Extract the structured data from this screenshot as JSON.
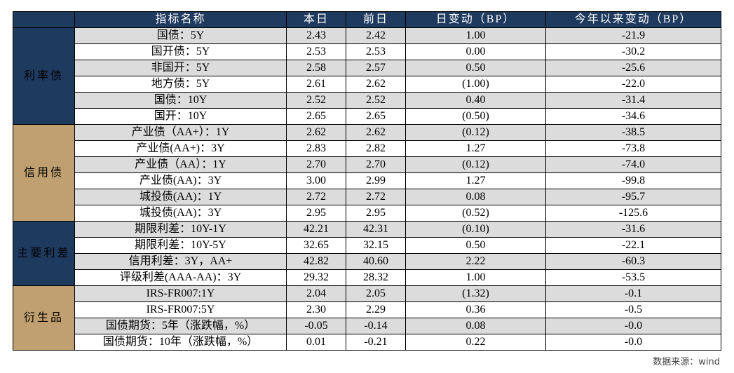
{
  "headers": [
    "指标名称",
    "本日",
    "前日",
    "日变动（BP）",
    "今年以来变动（BP）"
  ],
  "colors": {
    "header": "#1f3a5f",
    "cat_blue": "#1f3a5f",
    "cat_tan": "#c0a070",
    "shade": "#dcdcdc",
    "negative": "#e00000"
  },
  "groups": [
    {
      "name": "利率债",
      "color": "#1f3a5f",
      "rows": [
        {
          "name": "国债：5Y",
          "today": "2.43",
          "prev": "2.42",
          "daily": "1.00",
          "ytd": "-21.9"
        },
        {
          "name": "国开债：5Y",
          "today": "2.53",
          "prev": "2.53",
          "daily": "0.00",
          "ytd": "-30.2"
        },
        {
          "name": "非国开：5Y",
          "today": "2.58",
          "prev": "2.57",
          "daily": "0.50",
          "ytd": "-25.6"
        },
        {
          "name": "地方债：5Y",
          "today": "2.61",
          "prev": "2.62",
          "daily": "(1.00)",
          "ytd": "-22.0"
        },
        {
          "name": "国债：10Y",
          "today": "2.52",
          "prev": "2.52",
          "daily": "0.40",
          "ytd": "-31.4"
        },
        {
          "name": "国开：10Y",
          "today": "2.65",
          "prev": "2.65",
          "daily": "(0.50)",
          "ytd": "-34.6"
        }
      ]
    },
    {
      "name": "信用债",
      "color": "#c0a070",
      "rows": [
        {
          "name": "产业债（AA+）：1Y",
          "today": "2.62",
          "prev": "2.62",
          "daily": "(0.12)",
          "ytd": "-38.5"
        },
        {
          "name": "产业债(AA+)：3Y",
          "today": "2.83",
          "prev": "2.82",
          "daily": "1.27",
          "ytd": "-73.8"
        },
        {
          "name": "产业债（AA）：1Y",
          "today": "2.70",
          "prev": "2.70",
          "daily": "(0.12)",
          "ytd": "-74.0"
        },
        {
          "name": "产业债(AA)：3Y",
          "today": "3.00",
          "prev": "2.99",
          "daily": "1.27",
          "ytd": "-99.8"
        },
        {
          "name": "城投债(AA)：1Y",
          "today": "2.72",
          "prev": "2.72",
          "daily": "0.08",
          "ytd": "-95.7"
        },
        {
          "name": "城投债(AA)：3Y",
          "today": "2.95",
          "prev": "2.95",
          "daily": "(0.52)",
          "ytd": "-125.6"
        }
      ]
    },
    {
      "name": "主要利差",
      "color": "#1f3a5f",
      "rows": [
        {
          "name": "期限利差：10Y-1Y",
          "today": "42.21",
          "prev": "42.31",
          "daily": "(0.10)",
          "ytd": "-31.6"
        },
        {
          "name": "期限利差：10Y-5Y",
          "today": "32.65",
          "prev": "32.15",
          "daily": "0.50",
          "ytd": "-22.1"
        },
        {
          "name": "信用利差：3Y，AA+",
          "today": "42.82",
          "prev": "40.60",
          "daily": "2.22",
          "ytd": "-60.3"
        },
        {
          "name": "评级利差(AAA-AA)：3Y",
          "today": "29.32",
          "prev": "28.32",
          "daily": "1.00",
          "ytd": "-53.5"
        }
      ]
    },
    {
      "name": "衍生品",
      "color": "#c0a070",
      "rows": [
        {
          "name": "IRS-FR007:1Y",
          "today": "2.04",
          "prev": "2.05",
          "daily": "(1.32)",
          "ytd": "-0.1"
        },
        {
          "name": "IRS-FR007:5Y",
          "today": "2.30",
          "prev": "2.29",
          "daily": "0.36",
          "ytd": "-0.5"
        },
        {
          "name": "国债期货：5年（涨跌幅，%）",
          "today": "-0.05",
          "prev": "-0.14",
          "daily": "0.08",
          "ytd": "-0.0"
        },
        {
          "name": "国债期货：10年（涨跌幅，%）",
          "today": "0.01",
          "prev": "-0.21",
          "daily": "0.22",
          "ytd": "-0.0"
        }
      ]
    }
  ],
  "source": "数据来源：wind"
}
